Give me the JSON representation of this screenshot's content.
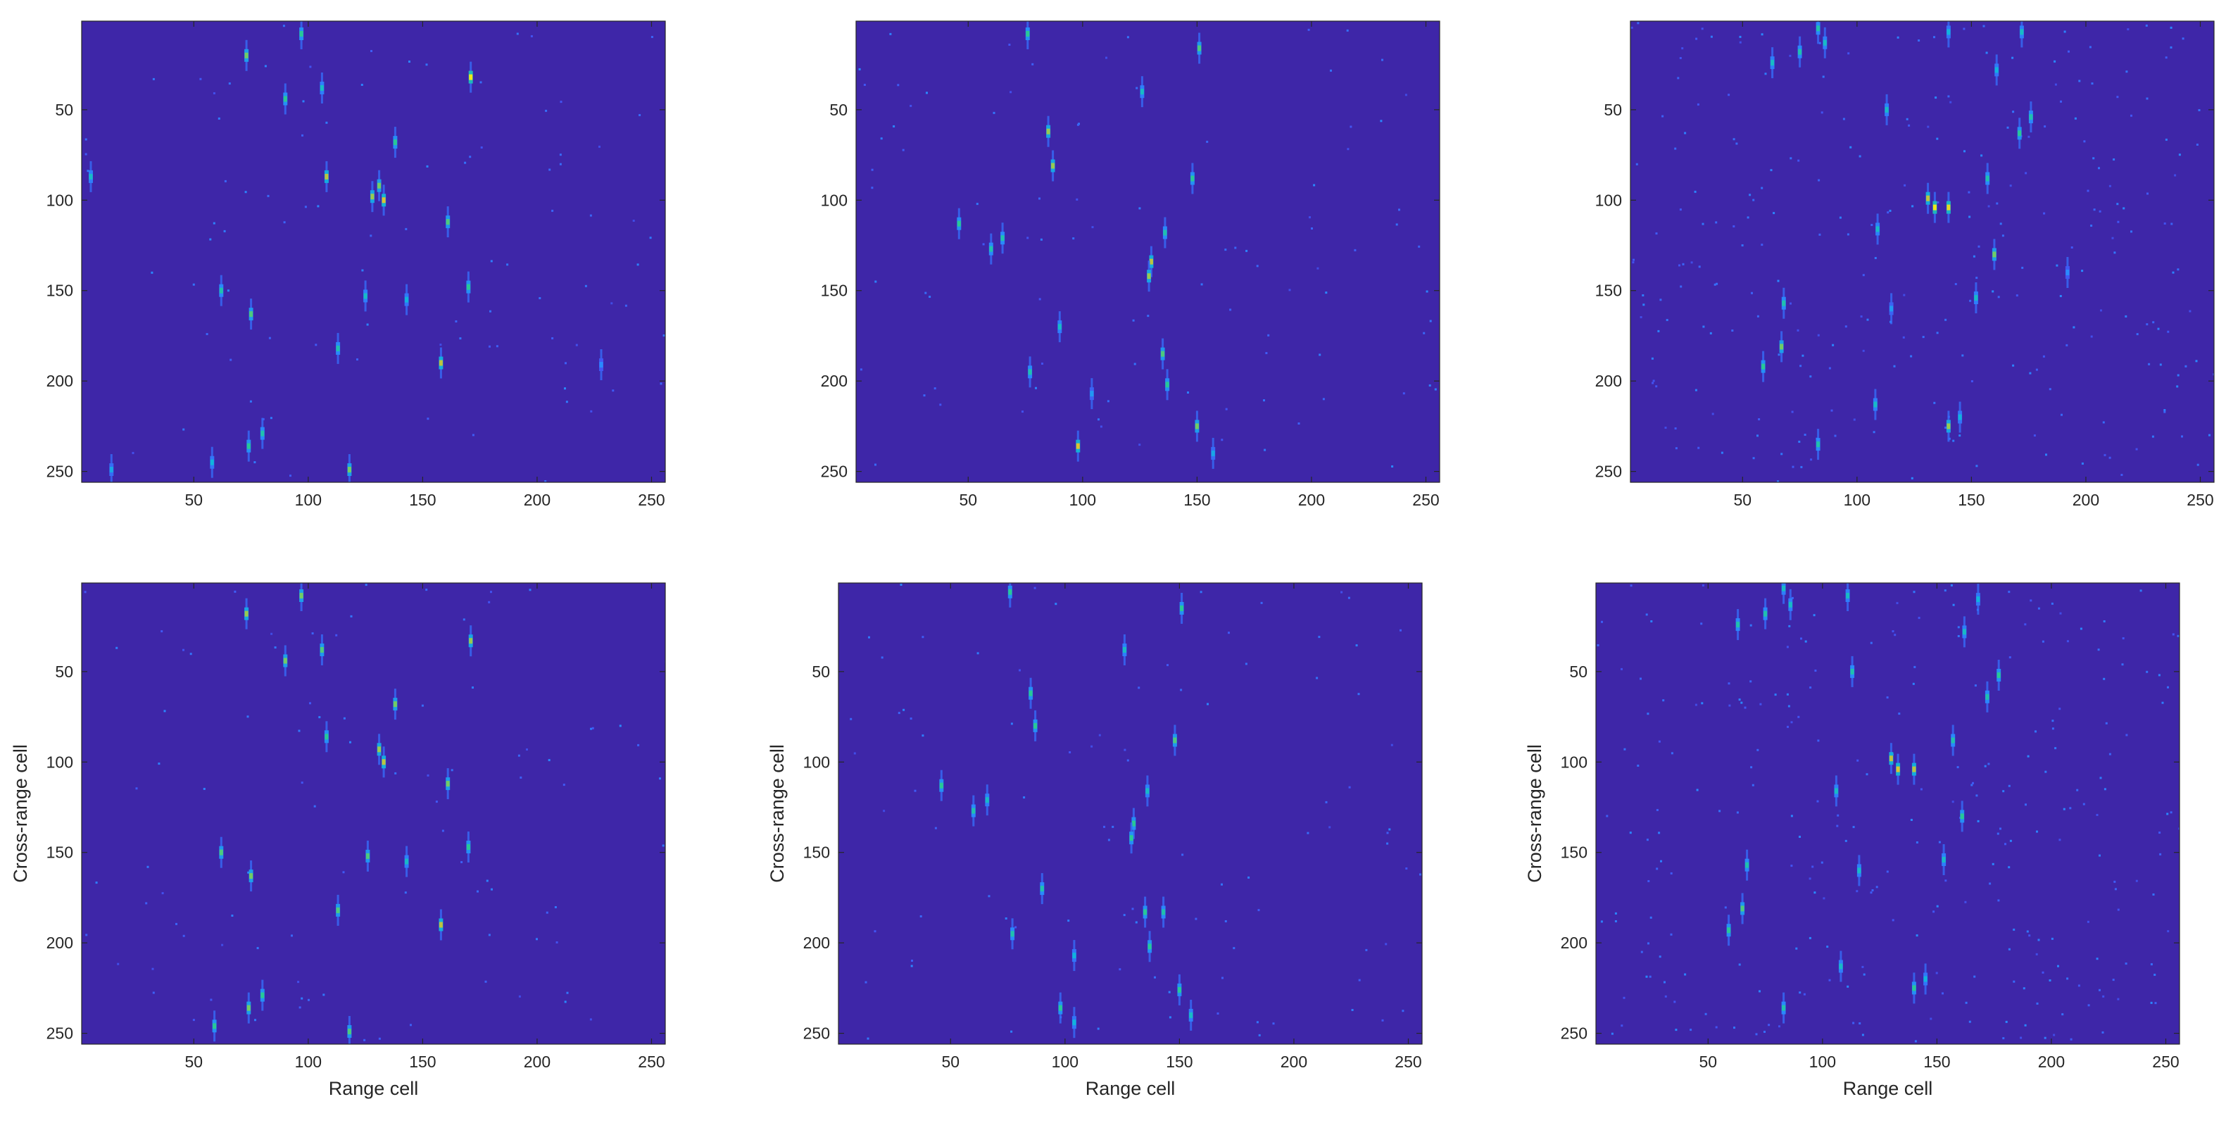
{
  "chart_data": [
    {
      "type": "heatmap",
      "colormap": "parula",
      "background_color": "#3e26a8",
      "xlim": [
        1,
        256
      ],
      "ylim": [
        1,
        256
      ],
      "y_reversed": true,
      "xticks": [
        50,
        100,
        150,
        200,
        250
      ],
      "yticks": [
        50,
        100,
        150,
        200,
        250
      ],
      "xlabel": "",
      "ylabel": "",
      "points": [
        [
          97,
          8,
          0.6
        ],
        [
          73,
          20,
          0.7
        ],
        [
          90,
          44,
          0.6
        ],
        [
          106,
          38,
          0.5
        ],
        [
          171,
          32,
          0.95
        ],
        [
          138,
          68,
          0.6
        ],
        [
          108,
          87,
          0.8
        ],
        [
          5,
          87,
          0.5
        ],
        [
          128,
          98,
          0.75
        ],
        [
          131,
          92,
          0.7
        ],
        [
          133,
          100,
          0.85
        ],
        [
          161,
          112,
          0.65
        ],
        [
          62,
          150,
          0.55
        ],
        [
          75,
          163,
          0.65
        ],
        [
          125,
          153,
          0.5
        ],
        [
          143,
          155,
          0.45
        ],
        [
          170,
          148,
          0.6
        ],
        [
          113,
          182,
          0.55
        ],
        [
          158,
          190,
          0.8
        ],
        [
          74,
          236,
          0.6
        ],
        [
          80,
          229,
          0.55
        ],
        [
          58,
          245,
          0.45
        ],
        [
          118,
          249,
          0.7
        ],
        [
          14,
          249,
          0.4
        ],
        [
          228,
          191,
          0.3
        ]
      ]
    },
    {
      "type": "heatmap",
      "colormap": "parula",
      "background_color": "#3e26a8",
      "xlim": [
        1,
        256
      ],
      "ylim": [
        1,
        256
      ],
      "y_reversed": true,
      "xticks": [
        50,
        100,
        150,
        200,
        250
      ],
      "yticks": [
        50,
        100,
        150,
        200,
        250
      ],
      "xlabel": "",
      "ylabel": "",
      "points": [
        [
          76,
          8,
          0.6
        ],
        [
          151,
          16,
          0.65
        ],
        [
          126,
          40,
          0.5
        ],
        [
          85,
          62,
          0.75
        ],
        [
          87,
          81,
          0.75
        ],
        [
          148,
          88,
          0.6
        ],
        [
          46,
          113,
          0.6
        ],
        [
          60,
          127,
          0.55
        ],
        [
          65,
          121,
          0.55
        ],
        [
          130,
          134,
          0.8
        ],
        [
          129,
          142,
          0.75
        ],
        [
          136,
          118,
          0.55
        ],
        [
          90,
          170,
          0.5
        ],
        [
          135,
          185,
          0.65
        ],
        [
          77,
          195,
          0.55
        ],
        [
          137,
          202,
          0.6
        ],
        [
          104,
          207,
          0.35
        ],
        [
          150,
          225,
          0.7
        ],
        [
          98,
          236,
          0.85
        ],
        [
          157,
          240,
          0.4
        ]
      ]
    },
    {
      "type": "heatmap",
      "colormap": "parula",
      "background_color": "#3e26a8",
      "xlim": [
        1,
        256
      ],
      "ylim": [
        1,
        256
      ],
      "y_reversed": true,
      "xticks": [
        50,
        100,
        150,
        200,
        250
      ],
      "yticks": [
        50,
        100,
        150,
        200,
        250
      ],
      "xlabel": "",
      "ylabel": "",
      "points": [
        [
          83,
          5,
          0.55
        ],
        [
          86,
          13,
          0.5
        ],
        [
          75,
          18,
          0.55
        ],
        [
          63,
          24,
          0.5
        ],
        [
          140,
          7,
          0.45
        ],
        [
          172,
          7,
          0.5
        ],
        [
          161,
          28,
          0.45
        ],
        [
          113,
          50,
          0.5
        ],
        [
          176,
          54,
          0.55
        ],
        [
          171,
          63,
          0.6
        ],
        [
          131,
          99,
          0.8
        ],
        [
          134,
          104,
          0.95
        ],
        [
          140,
          104,
          0.9
        ],
        [
          157,
          88,
          0.55
        ],
        [
          109,
          116,
          0.5
        ],
        [
          160,
          130,
          0.7
        ],
        [
          152,
          154,
          0.5
        ],
        [
          68,
          157,
          0.55
        ],
        [
          67,
          181,
          0.7
        ],
        [
          59,
          192,
          0.6
        ],
        [
          108,
          213,
          0.5
        ],
        [
          140,
          225,
          0.75
        ],
        [
          145,
          220,
          0.45
        ],
        [
          83,
          235,
          0.55
        ],
        [
          192,
          140,
          0.3
        ],
        [
          115,
          160,
          0.35
        ]
      ]
    },
    {
      "type": "heatmap",
      "colormap": "parula",
      "background_color": "#3e26a8",
      "xlim": [
        1,
        256
      ],
      "ylim": [
        1,
        256
      ],
      "y_reversed": true,
      "xticks": [
        50,
        100,
        150,
        200,
        250
      ],
      "yticks": [
        50,
        100,
        150,
        200,
        250
      ],
      "xlabel": "Range cell",
      "ylabel": "Cross-range cell",
      "points": [
        [
          97,
          8,
          0.7
        ],
        [
          73,
          18,
          0.75
        ],
        [
          90,
          44,
          0.7
        ],
        [
          106,
          38,
          0.65
        ],
        [
          171,
          33,
          0.75
        ],
        [
          138,
          68,
          0.7
        ],
        [
          108,
          86,
          0.6
        ],
        [
          131,
          93,
          0.75
        ],
        [
          133,
          100,
          0.8
        ],
        [
          161,
          112,
          0.7
        ],
        [
          62,
          150,
          0.65
        ],
        [
          75,
          163,
          0.7
        ],
        [
          126,
          152,
          0.65
        ],
        [
          143,
          155,
          0.5
        ],
        [
          170,
          147,
          0.6
        ],
        [
          113,
          182,
          0.65
        ],
        [
          158,
          190,
          0.8
        ],
        [
          74,
          236,
          0.7
        ],
        [
          80,
          229,
          0.6
        ],
        [
          59,
          246,
          0.6
        ],
        [
          118,
          249,
          0.65
        ]
      ]
    },
    {
      "type": "heatmap",
      "colormap": "parula",
      "background_color": "#3e26a8",
      "xlim": [
        1,
        256
      ],
      "ylim": [
        1,
        256
      ],
      "y_reversed": true,
      "xticks": [
        50,
        100,
        150,
        200,
        250
      ],
      "yticks": [
        50,
        100,
        150,
        200,
        250
      ],
      "xlabel": "Range cell",
      "ylabel": "Cross-range cell",
      "points": [
        [
          76,
          6,
          0.6
        ],
        [
          151,
          15,
          0.6
        ],
        [
          126,
          38,
          0.5
        ],
        [
          85,
          62,
          0.6
        ],
        [
          87,
          80,
          0.6
        ],
        [
          148,
          88,
          0.65
        ],
        [
          46,
          113,
          0.6
        ],
        [
          60,
          127,
          0.55
        ],
        [
          66,
          121,
          0.5
        ],
        [
          130,
          134,
          0.6
        ],
        [
          129,
          142,
          0.6
        ],
        [
          136,
          116,
          0.5
        ],
        [
          90,
          170,
          0.55
        ],
        [
          135,
          183,
          0.6
        ],
        [
          143,
          183,
          0.55
        ],
        [
          77,
          195,
          0.55
        ],
        [
          137,
          202,
          0.6
        ],
        [
          104,
          207,
          0.45
        ],
        [
          150,
          226,
          0.6
        ],
        [
          98,
          236,
          0.6
        ],
        [
          104,
          244,
          0.45
        ],
        [
          155,
          240,
          0.5
        ]
      ]
    },
    {
      "type": "heatmap",
      "colormap": "parula",
      "background_color": "#3e26a8",
      "xlim": [
        1,
        256
      ],
      "ylim": [
        1,
        256
      ],
      "y_reversed": true,
      "xticks": [
        50,
        100,
        150,
        200,
        250
      ],
      "yticks": [
        50,
        100,
        150,
        200,
        250
      ],
      "xlabel": "Range cell",
      "ylabel": "Cross-range cell",
      "points": [
        [
          83,
          4,
          0.5
        ],
        [
          86,
          13,
          0.5
        ],
        [
          75,
          18,
          0.55
        ],
        [
          63,
          24,
          0.55
        ],
        [
          111,
          8,
          0.5
        ],
        [
          168,
          10,
          0.45
        ],
        [
          162,
          28,
          0.5
        ],
        [
          113,
          50,
          0.55
        ],
        [
          177,
          52,
          0.6
        ],
        [
          172,
          64,
          0.55
        ],
        [
          130,
          98,
          0.8
        ],
        [
          133,
          104,
          0.85
        ],
        [
          140,
          104,
          0.8
        ],
        [
          157,
          88,
          0.55
        ],
        [
          106,
          116,
          0.5
        ],
        [
          161,
          130,
          0.6
        ],
        [
          153,
          154,
          0.5
        ],
        [
          67,
          157,
          0.55
        ],
        [
          65,
          181,
          0.65
        ],
        [
          59,
          193,
          0.6
        ],
        [
          116,
          160,
          0.5
        ],
        [
          108,
          213,
          0.5
        ],
        [
          140,
          225,
          0.6
        ],
        [
          145,
          220,
          0.45
        ],
        [
          83,
          236,
          0.55
        ]
      ]
    }
  ]
}
